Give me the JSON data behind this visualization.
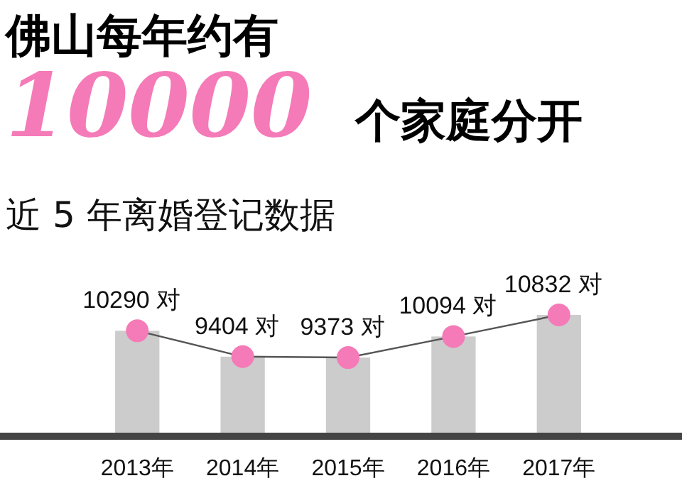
{
  "chart_data": {
    "type": "bar",
    "title": "佛山每年约有",
    "subtitle": "近 5 年离婚登记数据",
    "annotations": [
      "10000",
      "个家庭分开"
    ],
    "categories": [
      "2013年",
      "2014年",
      "2015年",
      "2016年",
      "2017年"
    ],
    "ylim": [
      6800,
      10832
    ],
    "tick_labels": "x",
    "grid": false,
    "series": [
      {
        "color": "#cccccc",
        "values": [
          10290,
          9404,
          9373,
          10094,
          10832
        ]
      },
      {
        "type": "line",
        "color": "#f57ab8",
        "marker": "circle",
        "values": [
          10290,
          9404,
          9373,
          10094,
          10832
        ],
        "value_labels": [
          "10290 对",
          "9404 对",
          "9373 对",
          "10094 对",
          "10832 对"
        ]
      }
    ]
  }
}
